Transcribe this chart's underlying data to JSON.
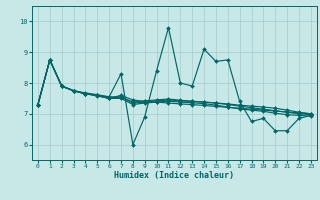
{
  "xlabel": "Humidex (Indice chaleur)",
  "background_color": "#c8e8e8",
  "grid_color": "#a8d0d0",
  "line_color": "#006666",
  "xlim": [
    -0.5,
    23.5
  ],
  "ylim": [
    5.5,
    10.5
  ],
  "yticks": [
    6,
    7,
    8,
    9,
    10
  ],
  "xticks": [
    0,
    1,
    2,
    3,
    4,
    5,
    6,
    7,
    8,
    9,
    10,
    11,
    12,
    13,
    14,
    15,
    16,
    17,
    18,
    19,
    20,
    21,
    22,
    23
  ],
  "series": [
    [
      7.3,
      8.75,
      7.9,
      7.75,
      7.65,
      7.6,
      7.55,
      8.3,
      6.0,
      6.9,
      8.4,
      9.8,
      8.0,
      7.9,
      9.1,
      8.7,
      8.75,
      7.4,
      6.75,
      6.85,
      6.45,
      6.45,
      6.85,
      6.95
    ],
    [
      7.3,
      8.75,
      7.9,
      7.75,
      7.65,
      7.6,
      7.5,
      7.6,
      7.45,
      7.4,
      7.38,
      7.35,
      7.32,
      7.3,
      7.27,
      7.24,
      7.21,
      7.18,
      7.15,
      7.12,
      7.09,
      7.06,
      7.03,
      7.0
    ],
    [
      7.3,
      8.75,
      7.9,
      7.75,
      7.65,
      7.6,
      7.5,
      7.55,
      7.35,
      7.38,
      7.42,
      7.45,
      7.42,
      7.4,
      7.38,
      7.35,
      7.32,
      7.28,
      7.25,
      7.22,
      7.18,
      7.12,
      7.05,
      7.0
    ],
    [
      7.3,
      8.75,
      7.9,
      7.75,
      7.68,
      7.62,
      7.55,
      7.55,
      7.38,
      7.42,
      7.45,
      7.48,
      7.44,
      7.41,
      7.38,
      7.35,
      7.3,
      7.25,
      7.2,
      7.15,
      7.1,
      7.05,
      7.0,
      6.97
    ],
    [
      7.3,
      8.75,
      7.9,
      7.75,
      7.65,
      7.58,
      7.5,
      7.5,
      7.3,
      7.35,
      7.38,
      7.41,
      7.38,
      7.36,
      7.33,
      7.28,
      7.22,
      7.16,
      7.12,
      7.08,
      7.02,
      6.97,
      6.95,
      6.92
    ]
  ],
  "marker": "D",
  "markersize": 2.0,
  "linewidth": 0.85
}
